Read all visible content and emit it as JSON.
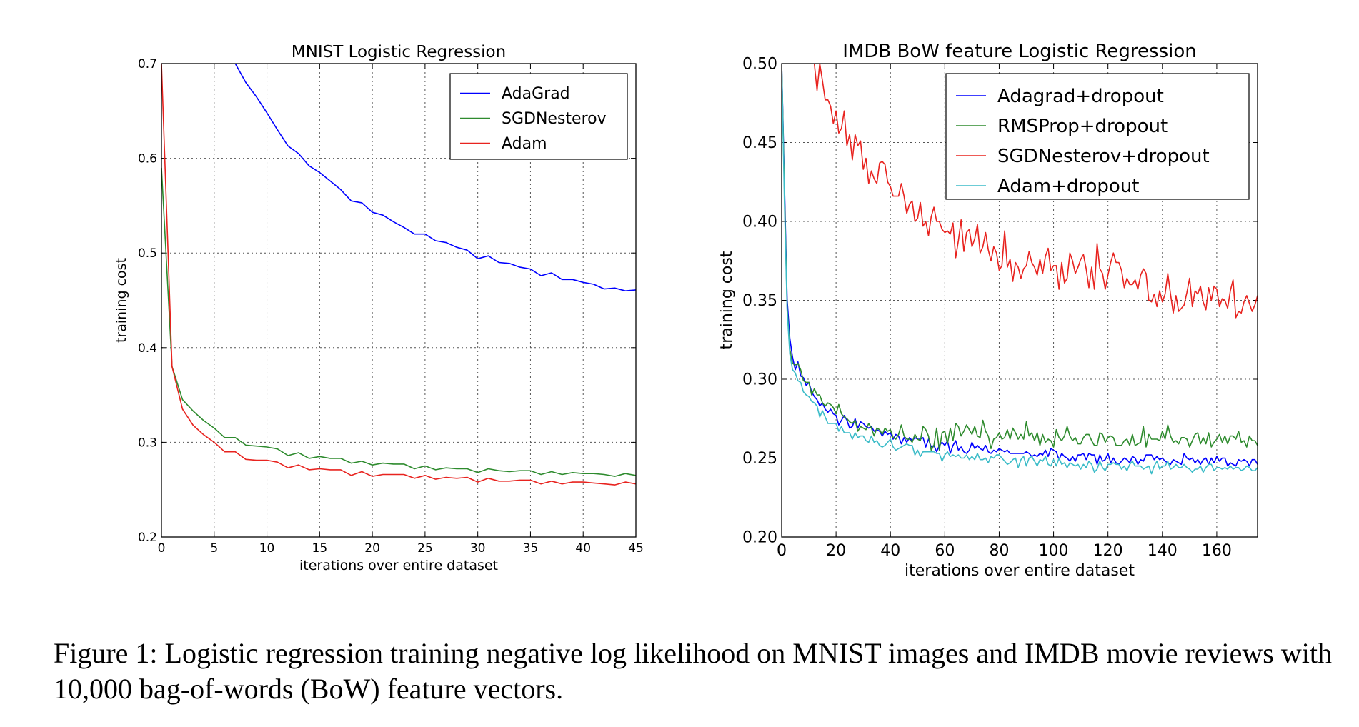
{
  "figure": {
    "caption": "Figure 1: Logistic regression training negative log likelihood on MNIST images and IMDB movie reviews with 10,000 bag-of-words (BoW) feature vectors."
  },
  "chart_data": [
    {
      "type": "line",
      "title": "MNIST Logistic Regression",
      "xlabel": "iterations over entire dataset",
      "ylabel": "training cost",
      "xlim": [
        0,
        45
      ],
      "ylim": [
        0.2,
        0.7
      ],
      "xticks": [
        0,
        5,
        10,
        15,
        20,
        25,
        30,
        35,
        40,
        45
      ],
      "xtick_labels": [
        "0",
        "5",
        "10",
        "15",
        "20",
        "25",
        "30",
        "35",
        "40",
        "45"
      ],
      "yticks": [
        0.2,
        0.3,
        0.4,
        0.5,
        0.6,
        0.7
      ],
      "ytick_labels": [
        "0.2",
        "0.3",
        "0.4",
        "0.5",
        "0.6",
        "0.7"
      ],
      "grid": true,
      "legend_position": "top-right",
      "x": [
        0,
        1,
        2,
        3,
        4,
        5,
        6,
        7,
        8,
        9,
        10,
        11,
        12,
        13,
        14,
        15,
        16,
        17,
        18,
        19,
        20,
        21,
        22,
        23,
        24,
        25,
        26,
        27,
        28,
        29,
        30,
        31,
        32,
        33,
        34,
        35,
        36,
        37,
        38,
        39,
        40,
        41,
        42,
        43,
        44,
        45
      ],
      "series": [
        {
          "name": "AdaGrad",
          "color": "#0000ff",
          "values": [
            null,
            null,
            null,
            null,
            null,
            null,
            null,
            0.7,
            0.68,
            0.665,
            0.648,
            0.63,
            0.613,
            0.605,
            0.592,
            0.585,
            0.576,
            0.567,
            0.555,
            0.553,
            0.543,
            0.54,
            0.533,
            0.527,
            0.52,
            0.52,
            0.513,
            0.511,
            0.506,
            0.503,
            0.494,
            0.497,
            0.49,
            0.489,
            0.485,
            0.483,
            0.476,
            0.479,
            0.472,
            0.472,
            0.469,
            0.467,
            0.462,
            0.463,
            0.46,
            0.461
          ]
        },
        {
          "name": "SGDNesterov",
          "color": "#2e8b2e",
          "values": [
            0.59,
            0.38,
            0.345,
            0.333,
            0.323,
            0.315,
            0.305,
            0.305,
            0.297,
            0.296,
            0.295,
            0.293,
            0.286,
            0.289,
            0.283,
            0.285,
            0.283,
            0.283,
            0.278,
            0.28,
            0.276,
            0.278,
            0.277,
            0.277,
            0.272,
            0.275,
            0.271,
            0.273,
            0.272,
            0.272,
            0.268,
            0.272,
            0.27,
            0.269,
            0.27,
            0.27,
            0.266,
            0.269,
            0.266,
            0.268,
            0.267,
            0.267,
            0.266,
            0.264,
            0.267,
            0.265
          ]
        },
        {
          "name": "Adam",
          "color": "#e8231f",
          "values": [
            0.7,
            0.38,
            0.335,
            0.318,
            0.308,
            0.3,
            0.29,
            0.29,
            0.282,
            0.281,
            0.281,
            0.279,
            0.273,
            0.276,
            0.271,
            0.272,
            0.271,
            0.271,
            0.265,
            0.269,
            0.264,
            0.266,
            0.266,
            0.266,
            0.262,
            0.265,
            0.261,
            0.263,
            0.262,
            0.263,
            0.258,
            0.262,
            0.259,
            0.259,
            0.26,
            0.26,
            0.256,
            0.259,
            0.256,
            0.258,
            0.258,
            0.257,
            0.256,
            0.255,
            0.258,
            0.256
          ]
        }
      ]
    },
    {
      "type": "line",
      "title": "IMDB BoW feature Logistic Regression",
      "xlabel": "iterations over entire dataset",
      "ylabel": "training cost",
      "xlim": [
        0,
        175
      ],
      "ylim": [
        0.2,
        0.5
      ],
      "xticks": [
        0,
        20,
        40,
        60,
        80,
        100,
        120,
        140,
        160
      ],
      "xtick_labels": [
        "0",
        "20",
        "40",
        "60",
        "80",
        "100",
        "120",
        "140",
        "160"
      ],
      "yticks": [
        0.2,
        0.25,
        0.3,
        0.35,
        0.4,
        0.45,
        0.5
      ],
      "ytick_labels": [
        "0.20",
        "0.25",
        "0.30",
        "0.35",
        "0.40",
        "0.45",
        "0.50"
      ],
      "grid": true,
      "legend_position": "top-right",
      "x_start": 0,
      "x_step": 1,
      "series": [
        {
          "name": "Adagrad+dropout",
          "color": "#0000ff",
          "values": [
            0.5,
            0.425,
            0.351,
            0.326,
            0.314,
            0.306,
            0.311,
            0.302,
            0.301,
            0.296,
            0.298,
            0.292,
            0.289,
            0.287,
            0.283,
            0.285,
            0.281,
            0.279,
            0.281,
            0.278,
            0.277,
            0.271,
            0.274,
            0.277,
            0.274,
            0.269,
            0.27,
            0.275,
            0.269,
            0.273,
            0.272,
            0.27,
            0.269,
            0.27,
            0.267,
            0.268,
            0.267,
            0.264,
            0.267,
            0.265,
            0.266,
            0.262,
            0.265,
            0.264,
            0.259,
            0.263,
            0.26,
            0.263,
            0.261,
            0.263,
            0.262,
            0.262,
            0.263,
            0.257,
            0.262,
            0.257,
            0.258,
            0.254,
            0.258,
            0.26,
            0.258,
            0.261,
            0.253,
            0.258,
            0.261,
            0.255,
            0.257,
            0.254,
            0.253,
            0.255,
            0.26,
            0.256,
            0.258,
            0.256,
            0.255,
            0.258,
            0.254,
            0.253,
            0.255,
            0.254,
            0.256,
            0.255,
            0.254,
            0.255,
            0.253,
            0.253,
            0.253,
            0.253,
            0.253,
            0.253,
            0.254,
            0.253,
            0.251,
            0.252,
            0.251,
            0.253,
            0.252,
            0.255,
            0.251,
            0.256,
            0.255,
            0.254,
            0.249,
            0.253,
            0.251,
            0.25,
            0.248,
            0.251,
            0.248,
            0.252,
            0.252,
            0.253,
            0.249,
            0.253,
            0.252,
            0.252,
            0.246,
            0.252,
            0.248,
            0.249,
            0.253,
            0.247,
            0.25,
            0.247,
            0.246,
            0.248,
            0.25,
            0.249,
            0.247,
            0.251,
            0.25,
            0.246,
            0.249,
            0.248,
            0.252,
            0.252,
            0.252,
            0.249,
            0.251,
            0.249,
            0.25,
            0.248,
            0.247,
            0.246,
            0.249,
            0.248,
            0.247,
            0.246,
            0.253,
            0.25,
            0.249,
            0.25,
            0.247,
            0.249,
            0.246,
            0.249,
            0.25,
            0.246,
            0.25,
            0.247,
            0.251,
            0.248,
            0.25,
            0.25,
            0.245,
            0.247,
            0.246,
            0.245,
            0.249,
            0.248,
            0.249,
            0.248,
            0.245,
            0.249,
            0.249,
            0.246
          ]
        },
        {
          "name": "RMSProp+dropout",
          "color": "#2e8b2e",
          "values": [
            0.5,
            0.42,
            0.346,
            0.319,
            0.31,
            0.309,
            0.31,
            0.306,
            0.299,
            0.298,
            0.298,
            0.29,
            0.294,
            0.29,
            0.29,
            0.285,
            0.283,
            0.285,
            0.284,
            0.282,
            0.278,
            0.284,
            0.278,
            0.276,
            0.275,
            0.273,
            0.272,
            0.274,
            0.267,
            0.27,
            0.269,
            0.268,
            0.272,
            0.269,
            0.264,
            0.269,
            0.268,
            0.265,
            0.269,
            0.267,
            0.268,
            0.263,
            0.262,
            0.265,
            0.271,
            0.264,
            0.262,
            0.262,
            0.26,
            0.265,
            0.262,
            0.261,
            0.27,
            0.268,
            0.264,
            0.255,
            0.258,
            0.269,
            0.255,
            0.266,
            0.267,
            0.259,
            0.269,
            0.261,
            0.272,
            0.27,
            0.264,
            0.267,
            0.271,
            0.268,
            0.265,
            0.27,
            0.264,
            0.263,
            0.274,
            0.267,
            0.264,
            0.256,
            0.262,
            0.263,
            0.266,
            0.262,
            0.263,
            0.268,
            0.262,
            0.269,
            0.266,
            0.262,
            0.265,
            0.262,
            0.273,
            0.264,
            0.266,
            0.261,
            0.266,
            0.258,
            0.265,
            0.26,
            0.262,
            0.261,
            0.257,
            0.268,
            0.263,
            0.261,
            0.264,
            0.27,
            0.264,
            0.261,
            0.263,
            0.259,
            0.259,
            0.263,
            0.265,
            0.265,
            0.261,
            0.258,
            0.258,
            0.266,
            0.265,
            0.26,
            0.263,
            0.264,
            0.263,
            0.258,
            0.258,
            0.258,
            0.261,
            0.262,
            0.258,
            0.265,
            0.258,
            0.259,
            0.26,
            0.27,
            0.257,
            0.265,
            0.262,
            0.262,
            0.262,
            0.261,
            0.267,
            0.262,
            0.271,
            0.264,
            0.26,
            0.261,
            0.259,
            0.263,
            0.263,
            0.262,
            0.257,
            0.261,
            0.265,
            0.266,
            0.259,
            0.263,
            0.259,
            0.266,
            0.257,
            0.26,
            0.262,
            0.265,
            0.26,
            0.264,
            0.259,
            0.264,
            0.264,
            0.262,
            0.267,
            0.26,
            0.261,
            0.257,
            0.264,
            0.261,
            0.261,
            0.258,
            0.264,
            0.255,
            0.258
          ]
        },
        {
          "name": "SGDNesterov+dropout",
          "color": "#e8231f",
          "values": [
            0.5,
            0.5,
            0.5,
            0.5,
            0.5,
            0.5,
            0.5,
            0.5,
            0.5,
            0.5,
            0.5,
            0.5,
            0.5,
            0.483,
            0.5,
            0.489,
            0.477,
            0.477,
            0.473,
            0.462,
            0.47,
            0.456,
            0.459,
            0.47,
            0.448,
            0.455,
            0.439,
            0.455,
            0.448,
            0.451,
            0.433,
            0.44,
            0.424,
            0.432,
            0.427,
            0.424,
            0.437,
            0.438,
            0.436,
            0.425,
            0.422,
            0.416,
            0.416,
            0.416,
            0.424,
            0.416,
            0.405,
            0.411,
            0.413,
            0.4,
            0.402,
            0.412,
            0.397,
            0.4,
            0.391,
            0.403,
            0.409,
            0.4,
            0.4,
            0.395,
            0.393,
            0.394,
            0.392,
            0.399,
            0.377,
            0.388,
            0.401,
            0.381,
            0.393,
            0.395,
            0.384,
            0.389,
            0.398,
            0.38,
            0.384,
            0.393,
            0.382,
            0.375,
            0.384,
            0.38,
            0.369,
            0.372,
            0.394,
            0.371,
            0.376,
            0.362,
            0.374,
            0.371,
            0.364,
            0.37,
            0.372,
            0.381,
            0.374,
            0.371,
            0.366,
            0.376,
            0.367,
            0.378,
            0.383,
            0.369,
            0.372,
            0.372,
            0.357,
            0.374,
            0.361,
            0.364,
            0.38,
            0.375,
            0.367,
            0.371,
            0.376,
            0.379,
            0.37,
            0.358,
            0.371,
            0.357,
            0.386,
            0.37,
            0.367,
            0.357,
            0.366,
            0.374,
            0.38,
            0.374,
            0.374,
            0.369,
            0.358,
            0.364,
            0.36,
            0.36,
            0.363,
            0.357,
            0.366,
            0.37,
            0.367,
            0.35,
            0.349,
            0.354,
            0.346,
            0.356,
            0.349,
            0.354,
            0.367,
            0.354,
            0.342,
            0.353,
            0.343,
            0.345,
            0.347,
            0.355,
            0.364,
            0.346,
            0.356,
            0.354,
            0.359,
            0.349,
            0.344,
            0.358,
            0.35,
            0.359,
            0.357,
            0.346,
            0.351,
            0.35,
            0.345,
            0.356,
            0.363,
            0.339,
            0.343,
            0.342,
            0.349,
            0.353,
            0.348,
            0.343,
            0.347,
            0.353,
            0.35,
            0.342,
            0.353,
            0.341,
            0.344,
            0.354
          ]
        },
        {
          "name": "Adam+dropout",
          "color": "#3cbcc8",
          "values": [
            0.5,
            0.413,
            0.344,
            0.316,
            0.306,
            0.304,
            0.299,
            0.298,
            0.292,
            0.29,
            0.289,
            0.286,
            0.285,
            0.283,
            0.276,
            0.28,
            0.276,
            0.272,
            0.272,
            0.272,
            0.272,
            0.267,
            0.27,
            0.266,
            0.266,
            0.266,
            0.262,
            0.266,
            0.263,
            0.264,
            0.264,
            0.261,
            0.26,
            0.264,
            0.26,
            0.261,
            0.258,
            0.257,
            0.258,
            0.26,
            0.262,
            0.257,
            0.255,
            0.256,
            0.257,
            0.258,
            0.259,
            0.258,
            0.258,
            0.252,
            0.255,
            0.251,
            0.254,
            0.254,
            0.254,
            0.254,
            0.254,
            0.253,
            0.253,
            0.248,
            0.252,
            0.254,
            0.251,
            0.252,
            0.251,
            0.252,
            0.25,
            0.25,
            0.252,
            0.249,
            0.251,
            0.249,
            0.253,
            0.249,
            0.249,
            0.25,
            0.247,
            0.251,
            0.25,
            0.252,
            0.252,
            0.25,
            0.248,
            0.246,
            0.247,
            0.249,
            0.25,
            0.244,
            0.249,
            0.251,
            0.245,
            0.25,
            0.251,
            0.248,
            0.245,
            0.249,
            0.248,
            0.251,
            0.246,
            0.245,
            0.249,
            0.245,
            0.25,
            0.246,
            0.247,
            0.244,
            0.247,
            0.246,
            0.245,
            0.246,
            0.243,
            0.246,
            0.244,
            0.248,
            0.246,
            0.241,
            0.243,
            0.248,
            0.244,
            0.242,
            0.246,
            0.246,
            0.247,
            0.246,
            0.246,
            0.243,
            0.245,
            0.242,
            0.246,
            0.248,
            0.245,
            0.245,
            0.245,
            0.243,
            0.244,
            0.245,
            0.24,
            0.245,
            0.248,
            0.243,
            0.245,
            0.245,
            0.248,
            0.243,
            0.244,
            0.246,
            0.244,
            0.244,
            0.246,
            0.244,
            0.243,
            0.241,
            0.243,
            0.243,
            0.245,
            0.241,
            0.244,
            0.246,
            0.246,
            0.242,
            0.244,
            0.244,
            0.243,
            0.244,
            0.243,
            0.245,
            0.243,
            0.244,
            0.244,
            0.242,
            0.243,
            0.245,
            0.244,
            0.242,
            0.242,
            0.244,
            0.244,
            0.244,
            0.24
          ]
        }
      ]
    }
  ]
}
